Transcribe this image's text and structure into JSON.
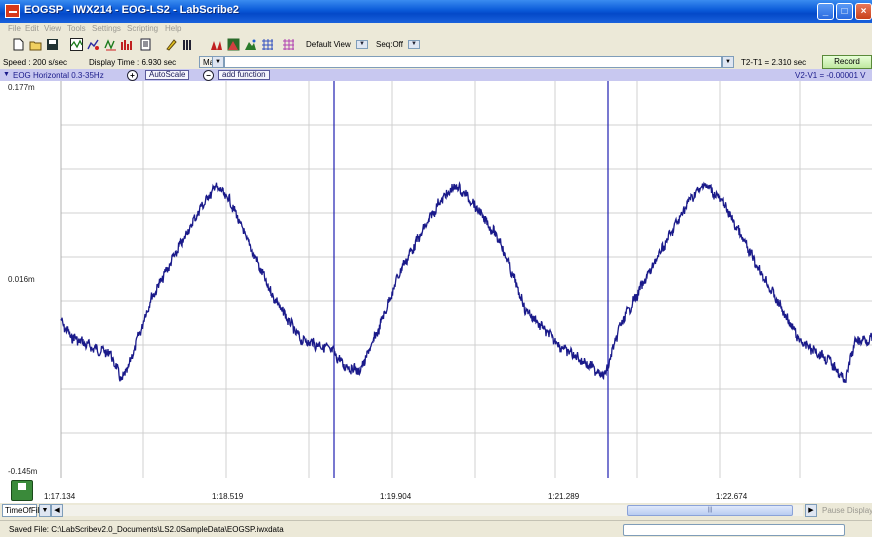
{
  "window": {
    "title": "EOGSP - IWX214 - EOG-LS2 - LabScribe2",
    "controls": [
      "_",
      "□",
      "×"
    ]
  },
  "menu": [
    "File",
    "Edit",
    "View",
    "Tools",
    "Settings",
    "Scripting",
    "Help"
  ],
  "toolbar": {
    "view_label": "Default View",
    "seq_label": "Seq:Off"
  },
  "controls": {
    "speed": "Speed : 200 s/sec",
    "display_time": "Display Time : 6.930 sec",
    "mark_label": "Mark",
    "t_diff": "T2-T1 = 2.310 sec",
    "record_label": "Record"
  },
  "channel": {
    "name": "EOG Horizontal  0.3-35Hz",
    "autoscale_label": "AutoScale",
    "add_function_label": "add function",
    "v_diff": "V2-V1 = -0.00001 V"
  },
  "plot": {
    "y_top": "0.177m",
    "y_mid": "0.016m",
    "y_bottom": "-0.145m",
    "trace_color": "#1a1a8a",
    "cursor_color": "#1f1fb0"
  },
  "time_axis": {
    "ticks": [
      "1:17.134",
      "1:18.519",
      "1:19.904",
      "1:21.289",
      "1:22.674"
    ],
    "mode_label": "TimeOfFile"
  },
  "scroll": {
    "pause_label": "Pause Display"
  },
  "status": {
    "text": "Saved File: C:\\LabScribev2.0_Documents\\LS2.0SampleData\\EOGSP.iwxdata"
  }
}
